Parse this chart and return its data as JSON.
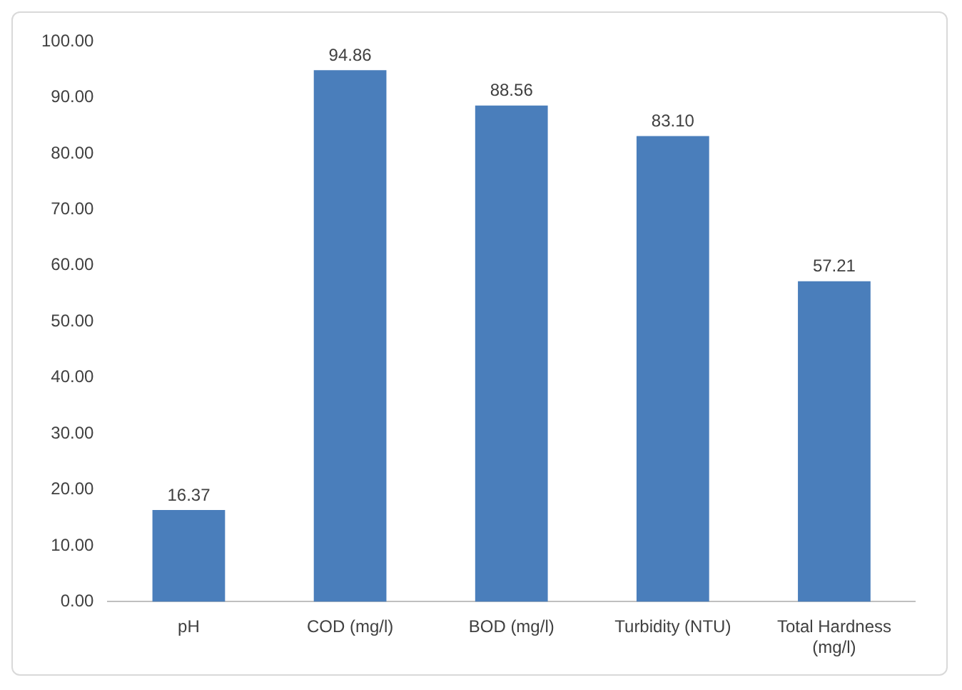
{
  "chart_data": {
    "type": "bar",
    "categories": [
      "pH",
      "COD (mg/l)",
      "BOD (mg/l)",
      "Turbidity (NTU)",
      "Total Hardness (mg/l)"
    ],
    "values": [
      16.37,
      94.86,
      88.56,
      83.1,
      57.21
    ],
    "value_labels": [
      "16.37",
      "94.86",
      "88.56",
      "83.10",
      "57.21"
    ],
    "color": "#4a7ebb",
    "ylim": [
      0,
      100
    ],
    "yticks": [
      {
        "value": 0,
        "label": "0.00"
      },
      {
        "value": 10,
        "label": "10.00"
      },
      {
        "value": 20,
        "label": "20.00"
      },
      {
        "value": 30,
        "label": "30.00"
      },
      {
        "value": 40,
        "label": "40.00"
      },
      {
        "value": 50,
        "label": "50.00"
      },
      {
        "value": 60,
        "label": "60.00"
      },
      {
        "value": 70,
        "label": "70.00"
      },
      {
        "value": 80,
        "label": "80.00"
      },
      {
        "value": 90,
        "label": "90.00"
      },
      {
        "value": 100,
        "label": "100.00"
      }
    ],
    "grid": false,
    "legend": false
  }
}
